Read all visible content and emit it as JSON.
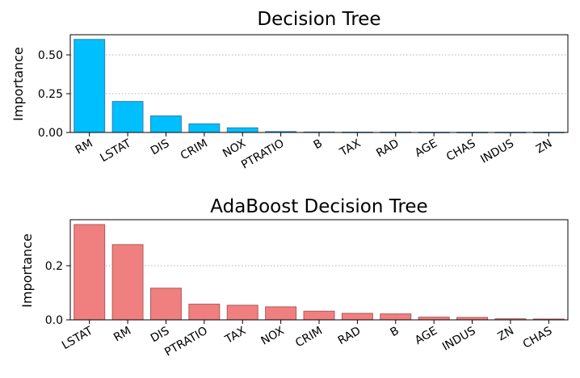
{
  "chart_data": [
    {
      "type": "bar",
      "title": "Decision Tree",
      "xlabel": "",
      "ylabel": "Importance",
      "categories": [
        "RM",
        "LSTAT",
        "DIS",
        "CRIM",
        "NOX",
        "PTRATIO",
        "B",
        "TAX",
        "RAD",
        "AGE",
        "CHAS",
        "INDUS",
        "ZN"
      ],
      "values": [
        0.6,
        0.2,
        0.107,
        0.056,
        0.03,
        0.006,
        0.003,
        0.002,
        0.002,
        0.001,
        0.001,
        0.001,
        0.001
      ],
      "ylim": [
        0,
        0.63
      ],
      "yticks": [
        0.0,
        0.25,
        0.5
      ],
      "ytick_labels": [
        "0.00",
        "0.25",
        "0.50"
      ],
      "grid": "y",
      "bar_color": "#00bfff",
      "edge_color": "#3a7fa8"
    },
    {
      "type": "bar",
      "title": "AdaBoost Decision Tree",
      "xlabel": "",
      "ylabel": "Importance",
      "categories": [
        "LSTAT",
        "RM",
        "DIS",
        "PTRATIO",
        "TAX",
        "NOX",
        "CRIM",
        "RAD",
        "B",
        "AGE",
        "INDUS",
        "ZN",
        "CHAS"
      ],
      "values": [
        0.352,
        0.278,
        0.117,
        0.058,
        0.054,
        0.048,
        0.032,
        0.024,
        0.022,
        0.01,
        0.009,
        0.004,
        0.003
      ],
      "ylim": [
        0,
        0.37
      ],
      "yticks": [
        0.0,
        0.2
      ],
      "ytick_labels": [
        "0.0",
        "0.2"
      ],
      "grid": "y",
      "bar_color": "#f08080",
      "edge_color": "#b05858"
    }
  ]
}
